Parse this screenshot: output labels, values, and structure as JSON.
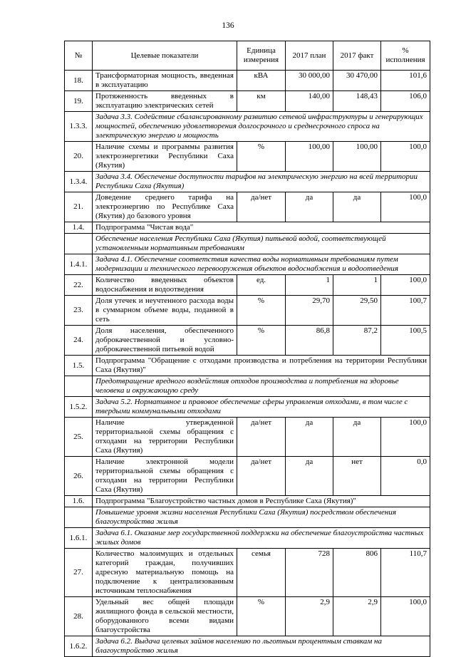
{
  "page": {
    "number": "136"
  },
  "table": {
    "headers": [
      "№",
      "Целевые показатели",
      "Единица измерения",
      "2017 план",
      "2017 факт",
      "% исполнения"
    ],
    "rows": [
      {
        "type": "indicator",
        "num": "18.",
        "name": "Трансформаторная мощность, введенная в эксплуатацию",
        "unit": "кВА",
        "plan": "30 000,00",
        "fact": "30 470,00",
        "pct": "101,6"
      },
      {
        "type": "indicator",
        "num": "19.",
        "name": "Протяженность введенных в эксплуатацию электрических сетей",
        "unit": "км",
        "plan": "140,00",
        "fact": "148,43",
        "pct": "106,0"
      },
      {
        "type": "section",
        "num": "1.3.3.",
        "text": "Задача 3.3. Содействие сбалансированному развитию сетевой инфраструктуры и генерирующих мощностей, обеспечению удовлетворения долгосрочного и среднесрочного спроса на электрическую энергию и мощность",
        "italic": true
      },
      {
        "type": "indicator",
        "num": "20.",
        "name": "Наличие схемы и программы развития электроэнергетики Республики Саха (Якутия)",
        "unit": "%",
        "plan": "100,00",
        "fact": "100,00",
        "pct": "100,0"
      },
      {
        "type": "section",
        "num": "1.3.4.",
        "text": "Задача 3.4. Обеспечение доступности тарифов на электрическую энергию на всей территории Республики Саха (Якутия)",
        "italic": true
      },
      {
        "type": "indicator",
        "num": "21.",
        "name": "Доведение среднего тарифа на электроэнергию по Республике Саха (Якутия) до базового уровня",
        "unit": "да/нет",
        "plan": "да",
        "fact": "да",
        "pct": "100,0"
      },
      {
        "type": "section",
        "num": "1.4.",
        "text": "Подпрограмма \"Чистая вода\"",
        "italic": false
      },
      {
        "type": "section",
        "num": "",
        "text": "Обеспечение населения Республики Саха (Якутия) питьевой водой, соответствующей установленным нормативным требованиям",
        "italic": true
      },
      {
        "type": "section",
        "num": "1.4.1.",
        "text": "Задача 4.1. Обеспечение соответствия качества воды нормативным требованиям путем модернизации и технического перевооружения объектов водоснабжения и водоотведения",
        "italic": true
      },
      {
        "type": "indicator",
        "num": "22.",
        "name": "Количество введенных объектов водоснабжения и водоотведения",
        "unit": "ед.",
        "plan": "1",
        "fact": "1",
        "pct": "100,0"
      },
      {
        "type": "indicator",
        "num": "23.",
        "name": "Доля утечек и неучтенного расхода воды в суммарном объеме воды, поданной в сеть",
        "unit": "%",
        "plan": "29,70",
        "fact": "29,50",
        "pct": "100,7"
      },
      {
        "type": "indicator",
        "num": "24.",
        "name": "Доля населения, обеспеченного доброкачественной и условно-доброкачественной питьевой водой",
        "unit": "%",
        "plan": "86,8",
        "fact": "87,2",
        "pct": "100,5"
      },
      {
        "type": "section",
        "num": "1.5.",
        "text": "Подпрограмма \"Обращение с отходами производства и потребления на территории Республики Саха (Якутия)\"",
        "italic": false
      },
      {
        "type": "section",
        "num": "",
        "text": "Предотвращение вредного воздействия отходов производства и потребления на здоровье человека и окружающую среду",
        "italic": true
      },
      {
        "type": "section",
        "num": "1.5.2.",
        "text": "Задача 5.2. Нормативное и правовое обеспечение сферы управления отходами, в том числе с твердыми коммунальными отходами",
        "italic": true
      },
      {
        "type": "indicator",
        "num": "25.",
        "name": "Наличие утвержденной территориальной схемы обращения с отходами на территории Республики Саха (Якутия)",
        "unit": "да/нет",
        "plan": "да",
        "fact": "да",
        "pct": "100,0"
      },
      {
        "type": "indicator",
        "num": "26.",
        "name": "Наличие электронной модели территориальной схемы обращения с отходами на территории Республики Саха (Якутия)",
        "unit": "да/нет",
        "plan": "да",
        "fact": "нет",
        "pct": "0,0"
      },
      {
        "type": "section",
        "num": "1.6.",
        "text": "Подпрограмма \"Благоустройство частных домов в Республике Саха (Якутия)\"",
        "italic": false
      },
      {
        "type": "section",
        "num": "",
        "text": "Повышение уровня жизни населения Республики Саха (Якутия) посредством обеспечения благоустройства жилья",
        "italic": true
      },
      {
        "type": "section",
        "num": "1.6.1.",
        "text": "Задача 6.1. Оказание мер государственной поддержки на обеспечение благоустройства частных жилых домов",
        "italic": true
      },
      {
        "type": "indicator",
        "num": "27.",
        "name": "Количество малоимущих и отдельных категорий граждан, получивших адресную материальную помощь на подключение к централизованным источникам теплоснабжения",
        "unit": "семья",
        "plan": "728",
        "fact": "806",
        "pct": "110,7"
      },
      {
        "type": "indicator",
        "num": "28.",
        "name": "Удельный вес общей площади жилищного фонда в сельской местности, оборудованного всеми видами благоустройства",
        "unit": "%",
        "plan": "2,9",
        "fact": "2,9",
        "pct": "100,0"
      },
      {
        "type": "section",
        "num": "1.6.2.",
        "text": "Задача 6.2. Выдача целевых займов населению по льготным процентным ставкам на благоустройство жилья",
        "italic": true
      }
    ]
  }
}
